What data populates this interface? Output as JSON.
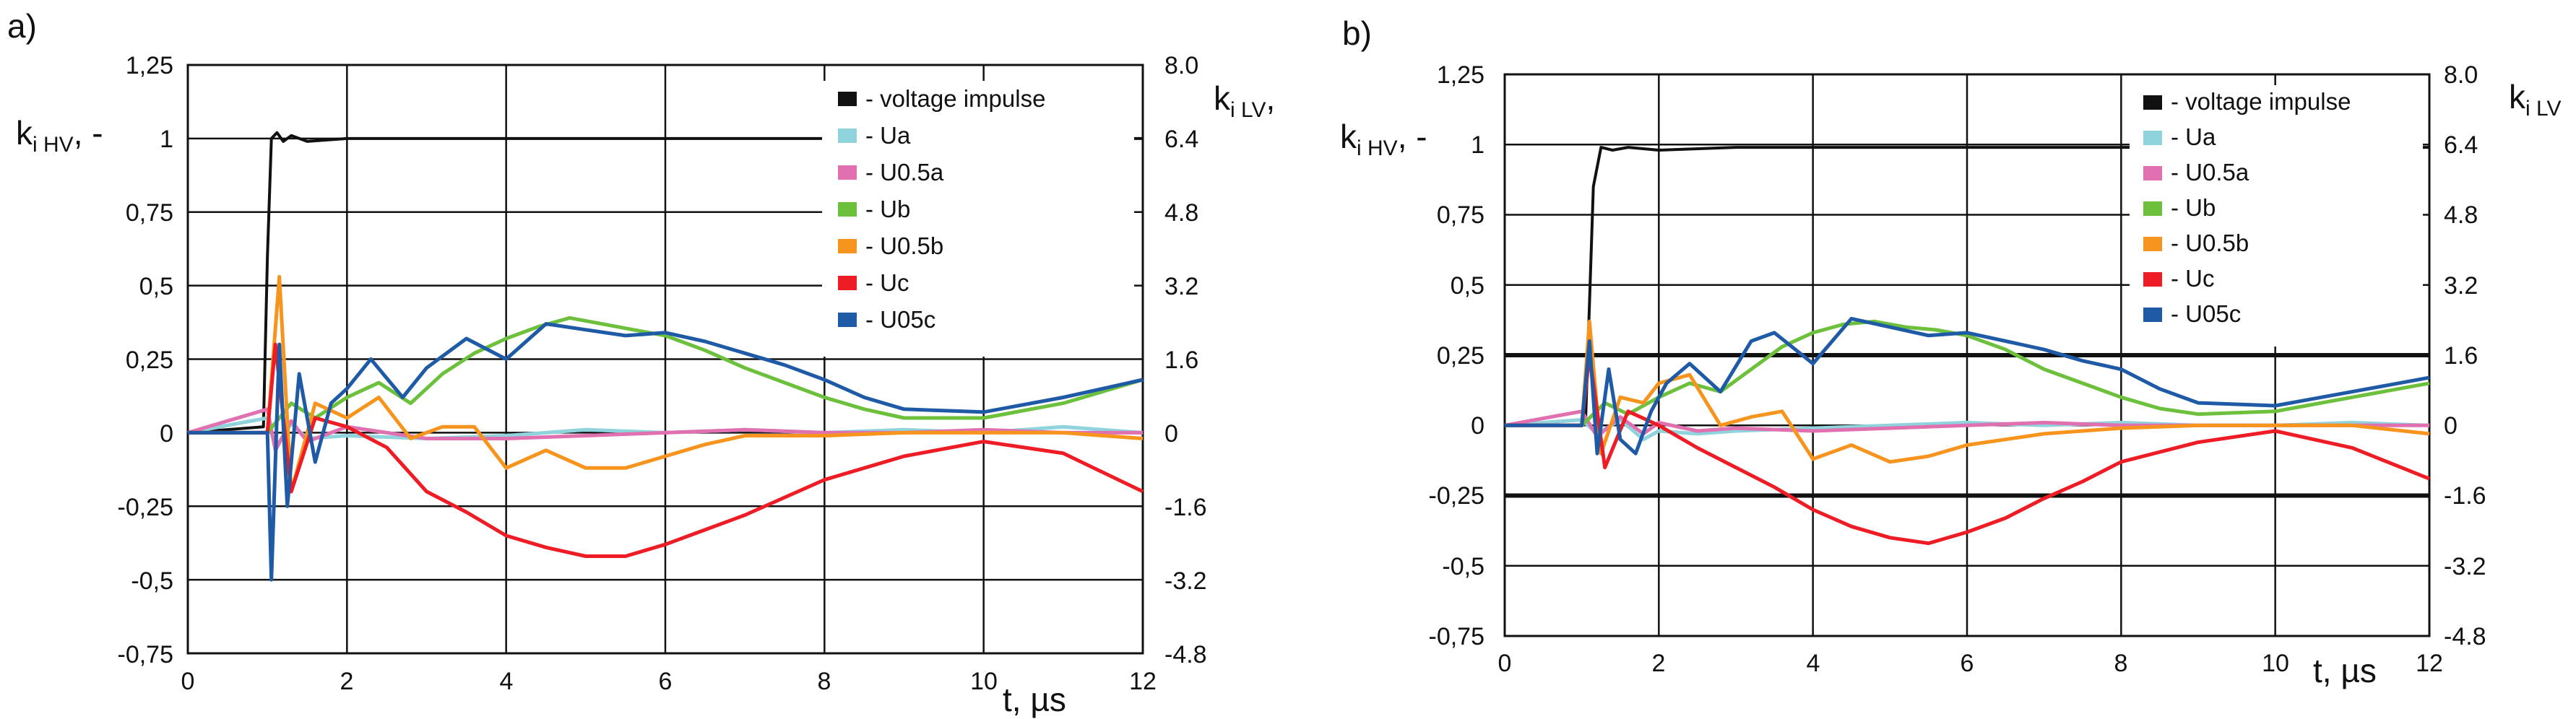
{
  "chart_data": [
    {
      "type": "line",
      "panel_label": "a)",
      "ylabel_left": {
        "main": "k",
        "sub": "i HV",
        "suffix": ", -"
      },
      "ylabel_right": {
        "main": "k",
        "sub": "i LV",
        "suffix": ","
      },
      "xlabel": "t, µs",
      "xlim": [
        0,
        12
      ],
      "ylim": [
        -0.75,
        1.25
      ],
      "ylim_right": [
        -4.8,
        8.0
      ],
      "x_ticks": [
        "0",
        "2",
        "4",
        "6",
        "8",
        "10",
        "12"
      ],
      "y_ticks_left": [
        "1,25",
        "1",
        "0,75",
        "0,5",
        "0,25",
        "0",
        "-0,25",
        "-0,5",
        "-0,75"
      ],
      "y_ticks_right": [
        "8.0",
        "6.4",
        "4.8",
        "3.2",
        "1.6",
        "0",
        "-1.6",
        "-3.2",
        "-4.8"
      ],
      "legend_position": "top-right",
      "series": [
        {
          "name": "- voltage impulse",
          "color": "#111111",
          "x": [
            0,
            0.95,
            1.0,
            1.05,
            1.12,
            1.2,
            1.3,
            1.5,
            2,
            3,
            12
          ],
          "y": [
            0,
            0.02,
            0.6,
            1.0,
            1.02,
            0.99,
            1.01,
            0.99,
            1.0,
            1.0,
            1.0
          ]
        },
        {
          "name": "- Ua",
          "color": "#8fd3dc",
          "x": [
            0,
            1,
            1.1,
            1.3,
            1.5,
            2,
            3,
            4,
            5,
            6,
            7,
            8,
            9,
            10,
            11,
            12
          ],
          "y": [
            0,
            0.05,
            -0.05,
            0.03,
            -0.02,
            -0.01,
            -0.02,
            -0.01,
            0.01,
            0.0,
            0.01,
            0.0,
            0.01,
            0.0,
            0.02,
            0.0
          ]
        },
        {
          "name": "- U0.5a",
          "color": "#e070b0",
          "x": [
            0,
            1,
            1.1,
            1.3,
            1.5,
            2,
            3,
            4,
            5,
            6,
            7,
            8,
            9,
            10,
            11,
            12
          ],
          "y": [
            0,
            0.08,
            -0.06,
            0.04,
            -0.03,
            0.02,
            -0.02,
            -0.02,
            -0.01,
            0.0,
            0.01,
            0.0,
            0.0,
            0.01,
            0.0,
            0.0
          ]
        },
        {
          "name": "- Ub",
          "color": "#6cc03c",
          "x": [
            0,
            1,
            1.3,
            1.6,
            2,
            2.4,
            2.8,
            3.2,
            3.6,
            4,
            4.4,
            4.8,
            5.2,
            5.6,
            6,
            6.5,
            7,
            7.5,
            8,
            8.5,
            9,
            10,
            11,
            12
          ],
          "y": [
            0,
            0.0,
            0.1,
            0.05,
            0.12,
            0.17,
            0.1,
            0.2,
            0.27,
            0.32,
            0.36,
            0.39,
            0.37,
            0.35,
            0.33,
            0.28,
            0.22,
            0.17,
            0.12,
            0.08,
            0.05,
            0.05,
            0.1,
            0.18
          ]
        },
        {
          "name": "- U0.5b",
          "color": "#f7941d",
          "x": [
            0,
            1,
            1.15,
            1.3,
            1.6,
            2,
            2.4,
            2.8,
            3.2,
            3.6,
            4,
            4.5,
            5,
            5.5,
            6,
            6.5,
            7,
            8,
            9,
            10,
            11,
            12
          ],
          "y": [
            0,
            0.0,
            0.53,
            -0.2,
            0.1,
            0.05,
            0.12,
            -0.02,
            0.02,
            0.02,
            -0.12,
            -0.06,
            -0.12,
            -0.12,
            -0.08,
            -0.04,
            -0.01,
            -0.01,
            0.0,
            0.0,
            0.0,
            -0.02
          ]
        },
        {
          "name": "- Uc",
          "color": "#ee1c25",
          "x": [
            0,
            1,
            1.1,
            1.3,
            1.6,
            2,
            2.5,
            3,
            3.5,
            4,
            4.5,
            5,
            5.5,
            6,
            6.5,
            7,
            7.5,
            8,
            9,
            10,
            11,
            12
          ],
          "y": [
            0,
            0.0,
            0.3,
            -0.2,
            0.05,
            0.02,
            -0.05,
            -0.2,
            -0.27,
            -0.35,
            -0.39,
            -0.42,
            -0.42,
            -0.38,
            -0.33,
            -0.28,
            -0.22,
            -0.16,
            -0.08,
            -0.03,
            -0.07,
            -0.2
          ]
        },
        {
          "name": "- U05c",
          "color": "#1f5aa6",
          "x": [
            0,
            1,
            1.05,
            1.15,
            1.25,
            1.4,
            1.6,
            1.8,
            2,
            2.3,
            2.7,
            3,
            3.5,
            4,
            4.5,
            5,
            5.5,
            6,
            6.5,
            7,
            7.5,
            8,
            8.5,
            9,
            10,
            11,
            12
          ],
          "y": [
            0,
            0.0,
            -0.5,
            0.3,
            -0.25,
            0.2,
            -0.1,
            0.1,
            0.15,
            0.25,
            0.12,
            0.22,
            0.32,
            0.25,
            0.37,
            0.35,
            0.33,
            0.34,
            0.31,
            0.27,
            0.23,
            0.18,
            0.12,
            0.08,
            0.07,
            0.12,
            0.18
          ]
        }
      ]
    },
    {
      "type": "line",
      "panel_label": "b)",
      "ylabel_left": {
        "main": "k",
        "sub": "i HV",
        "suffix": ", -"
      },
      "ylabel_right": {
        "main": "k",
        "sub": "i LV",
        "suffix": ""
      },
      "xlabel": "t, µs",
      "xlim": [
        0,
        12
      ],
      "ylim": [
        -0.75,
        1.25
      ],
      "ylim_right": [
        -4.8,
        8.0
      ],
      "x_ticks": [
        "0",
        "2",
        "4",
        "6",
        "8",
        "10",
        "12"
      ],
      "y_ticks_left": [
        "1,25",
        "1",
        "0,75",
        "0,5",
        "0,25",
        "0",
        "-0,25",
        "-0,5",
        "-0,75"
      ],
      "y_ticks_right": [
        "8.0",
        "6.4",
        "4.8",
        "3.2",
        "1.6",
        "0",
        "-1.6",
        "-3.2",
        "-4.8"
      ],
      "legend_position": "top-right",
      "series": [
        {
          "name": "- voltage impulse",
          "color": "#111111",
          "x": [
            0,
            1.05,
            1.15,
            1.25,
            1.4,
            1.6,
            2,
            3,
            12
          ],
          "y": [
            0,
            0.02,
            0.85,
            0.99,
            0.98,
            0.99,
            0.98,
            0.99,
            0.99
          ]
        },
        {
          "name": "- Ua",
          "color": "#8fd3dc",
          "x": [
            0,
            1,
            1.2,
            1.5,
            1.8,
            2,
            2.5,
            3,
            4,
            5,
            6,
            7,
            8,
            9,
            10,
            11,
            12
          ],
          "y": [
            0,
            0.02,
            -0.03,
            0.02,
            -0.05,
            -0.02,
            -0.03,
            -0.02,
            -0.01,
            0.0,
            0.01,
            0.0,
            0.01,
            0.0,
            0.0,
            0.01,
            0.0
          ]
        },
        {
          "name": "- U0.5a",
          "color": "#e070b0",
          "x": [
            0,
            1,
            1.2,
            1.5,
            1.8,
            2,
            2.5,
            3,
            4,
            5,
            6,
            7,
            8,
            9,
            10,
            11,
            12
          ],
          "y": [
            0,
            0.05,
            -0.04,
            0.03,
            -0.03,
            0.01,
            -0.02,
            -0.01,
            -0.02,
            -0.01,
            0.0,
            0.01,
            0.0,
            0.0,
            0.0,
            0.0,
            0.0
          ]
        },
        {
          "name": "- Ub",
          "color": "#6cc03c",
          "x": [
            0,
            1,
            1.3,
            1.6,
            2,
            2.4,
            2.8,
            3.2,
            3.6,
            4,
            4.4,
            4.8,
            5.2,
            5.6,
            6,
            6.5,
            7,
            7.5,
            8,
            8.5,
            9,
            10,
            11,
            12
          ],
          "y": [
            0,
            0.0,
            0.08,
            0.04,
            0.1,
            0.15,
            0.12,
            0.2,
            0.28,
            0.33,
            0.36,
            0.37,
            0.35,
            0.34,
            0.32,
            0.27,
            0.2,
            0.15,
            0.1,
            0.06,
            0.04,
            0.05,
            0.1,
            0.15
          ]
        },
        {
          "name": "- U0.5b",
          "color": "#f7941d",
          "x": [
            0,
            1,
            1.1,
            1.25,
            1.5,
            1.8,
            2,
            2.4,
            2.8,
            3.2,
            3.6,
            4,
            4.5,
            5,
            5.5,
            6,
            6.5,
            7,
            8,
            9,
            10,
            11,
            12
          ],
          "y": [
            0,
            0.0,
            0.37,
            -0.1,
            0.1,
            0.08,
            0.15,
            0.18,
            0.0,
            0.03,
            0.05,
            -0.12,
            -0.07,
            -0.13,
            -0.11,
            -0.07,
            -0.05,
            -0.03,
            -0.01,
            0.0,
            0.0,
            0.0,
            -0.03
          ]
        },
        {
          "name": "- Uc",
          "color": "#ee1c25",
          "x": [
            0,
            1,
            1.1,
            1.3,
            1.6,
            2,
            2.5,
            3,
            3.5,
            4,
            4.5,
            5,
            5.5,
            6,
            6.5,
            7,
            7.5,
            8,
            9,
            10,
            11,
            12
          ],
          "y": [
            0,
            0.0,
            0.25,
            -0.15,
            0.05,
            0.0,
            -0.08,
            -0.15,
            -0.22,
            -0.3,
            -0.36,
            -0.4,
            -0.42,
            -0.38,
            -0.33,
            -0.26,
            -0.2,
            -0.13,
            -0.06,
            -0.02,
            -0.08,
            -0.19
          ]
        },
        {
          "name": "- U05c",
          "color": "#1f5aa6",
          "x": [
            0,
            1,
            1.1,
            1.2,
            1.35,
            1.5,
            1.7,
            1.9,
            2.1,
            2.4,
            2.8,
            3.2,
            3.5,
            4,
            4.5,
            5,
            5.5,
            6,
            6.5,
            7,
            7.5,
            8,
            8.5,
            9,
            10,
            11,
            12
          ],
          "y": [
            0,
            0.0,
            0.3,
            -0.1,
            0.2,
            -0.05,
            -0.1,
            0.05,
            0.15,
            0.22,
            0.12,
            0.3,
            0.33,
            0.22,
            0.38,
            0.35,
            0.32,
            0.33,
            0.3,
            0.27,
            0.23,
            0.2,
            0.13,
            0.08,
            0.07,
            0.12,
            0.17
          ]
        }
      ]
    }
  ]
}
